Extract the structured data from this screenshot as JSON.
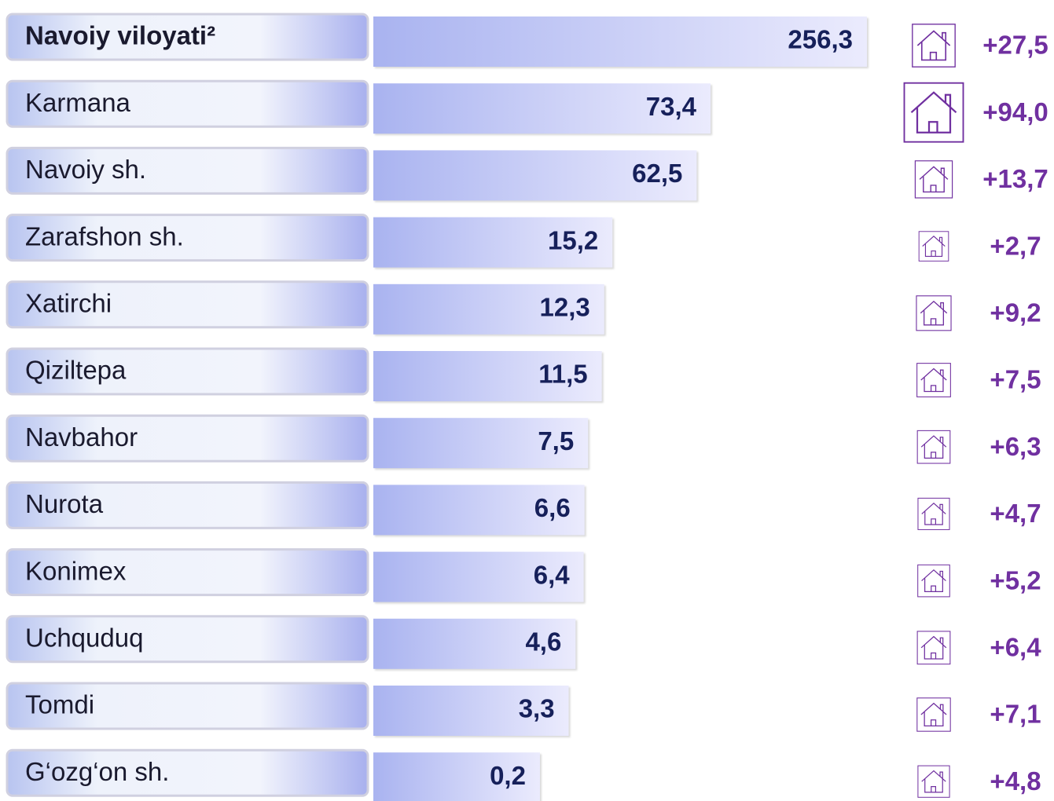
{
  "chart_data": {
    "type": "bar",
    "categories": [
      "Navoiy viloyati²",
      "Karmana",
      "Navoiy sh.",
      "Zarafshon sh.",
      "Xatirchi",
      "Qiziltepa",
      "Navbahor",
      "Nurota",
      "Konimex",
      "Uchquduq",
      "Tomdi",
      "G‘ozg‘on sh."
    ],
    "values": [
      256.3,
      73.4,
      62.5,
      15.2,
      12.3,
      11.5,
      7.5,
      6.6,
      6.4,
      4.6,
      3.3,
      0.2
    ],
    "value_labels": [
      "256,3",
      "73,4",
      "62,5",
      "15,2",
      "12,3",
      "11,5",
      "7,5",
      "6,6",
      "6,4",
      "4,6",
      "3,3",
      "0,2"
    ],
    "changes": [
      27.5,
      94.0,
      13.7,
      2.7,
      9.2,
      7.5,
      6.3,
      4.7,
      5.2,
      6.4,
      7.1,
      4.8
    ],
    "change_labels": [
      "+27,5",
      "+94,0",
      "+13,7",
      "+2,7",
      "+9,2",
      "+7,5",
      "+6,3",
      "+4,7",
      "+5,2",
      "+6,4",
      "+7,1",
      "+4,8"
    ],
    "color": "#a9b3f0",
    "change_color": "#7030a0"
  }
}
